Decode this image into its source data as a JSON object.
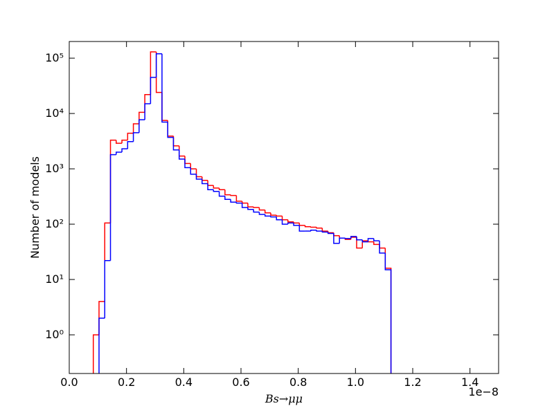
{
  "chart_data": {
    "type": "histogram-step",
    "xlabel": "Bs→μμ",
    "ylabel": "Number of models",
    "x_offset_label": "1e−8",
    "xlim": [
      0,
      1.5
    ],
    "ylim": [
      0.2,
      200000
    ],
    "log_y": true,
    "xticks": [
      {
        "value": 0,
        "label": "0.0"
      },
      0.2,
      0.4,
      0.6,
      0.8,
      {
        "value": 1,
        "label": "1.0"
      },
      1.2,
      1.4
    ],
    "yticks": [
      {
        "value": 1,
        "label": "10⁰"
      },
      {
        "value": 10,
        "label": "10¹"
      },
      {
        "value": 100,
        "label": "10²"
      },
      {
        "value": 1000,
        "label": "10³"
      },
      {
        "value": 10000,
        "label": "10⁴"
      },
      {
        "value": 100000,
        "label": "10⁵"
      }
    ],
    "bins": [
      0.084,
      0.104,
      0.124,
      0.144,
      0.164,
      0.184,
      0.204,
      0.224,
      0.244,
      0.264,
      0.284,
      0.304,
      0.324,
      0.344,
      0.364,
      0.384,
      0.404,
      0.424,
      0.444,
      0.464,
      0.484,
      0.504,
      0.524,
      0.544,
      0.564,
      0.584,
      0.604,
      0.624,
      0.644,
      0.664,
      0.684,
      0.704,
      0.724,
      0.744,
      0.764,
      0.784,
      0.804,
      0.824,
      0.844,
      0.864,
      0.884,
      0.904,
      0.924,
      0.944,
      0.964,
      0.984,
      1.004,
      1.024,
      1.044,
      1.064,
      1.084,
      1.104,
      1.124
    ],
    "series": [
      {
        "color": "#ff0000",
        "values": [
          1,
          4,
          105,
          3300,
          2900,
          3300,
          4400,
          6500,
          10500,
          22000,
          130000,
          24000,
          7500,
          3900,
          2600,
          1700,
          1250,
          1000,
          720,
          620,
          500,
          450,
          420,
          340,
          330,
          260,
          240,
          205,
          200,
          180,
          160,
          145,
          140,
          120,
          110,
          105,
          95,
          90,
          88,
          85,
          75,
          70,
          62,
          56,
          53,
          58,
          37,
          50,
          48,
          43,
          37,
          16
        ]
      },
      {
        "color": "#0000ff",
        "values": [
          0,
          2,
          22,
          1800,
          2000,
          2300,
          3100,
          4500,
          7700,
          15000,
          45000,
          120000,
          7000,
          3700,
          2200,
          1500,
          1050,
          800,
          650,
          540,
          420,
          390,
          320,
          280,
          250,
          240,
          200,
          185,
          165,
          150,
          140,
          135,
          120,
          100,
          105,
          95,
          75,
          75,
          78,
          75,
          72,
          68,
          45,
          56,
          55,
          60,
          52,
          48,
          55,
          50,
          30,
          15
        ]
      }
    ]
  }
}
